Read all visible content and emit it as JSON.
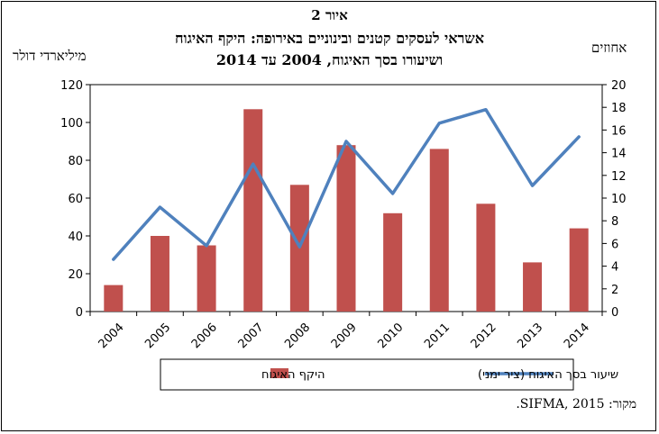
{
  "figure": {
    "number": "איור 2",
    "title_line1": "אשראי לעסקים קטנים ובינוניים באירופה: היקף האיגוח",
    "title_line2": "ושיעורו בסך האיגוח, 2004 עד 2014",
    "left_axis_unit": "מיליארדי דולר",
    "right_axis_unit": "אחוזים",
    "source": "מקור: SIFMA, 2015."
  },
  "chart_data": {
    "type": "bar+line",
    "categories": [
      "2004",
      "2005",
      "2006",
      "2007",
      "2008",
      "2009",
      "2010",
      "2011",
      "2012",
      "2013",
      "2014"
    ],
    "series": [
      {
        "name": "היקף האיגוח",
        "type": "bar",
        "axis": "left",
        "color": "#C0504D",
        "values": [
          14,
          40,
          35,
          107,
          67,
          88,
          52,
          86,
          57,
          26,
          44
        ]
      },
      {
        "name": "שיעור בסך האיגוח (ציר ימני)",
        "type": "line",
        "axis": "right",
        "color": "#4F81BD",
        "values": [
          4.6,
          9.2,
          5.8,
          13.0,
          5.7,
          15.0,
          10.4,
          16.6,
          17.8,
          11.1,
          15.4
        ]
      }
    ],
    "y_left": {
      "min": 0,
      "max": 120,
      "ticks": [
        "0",
        "20",
        "40",
        "60",
        "80",
        "100",
        "120"
      ]
    },
    "y_right": {
      "min": 0,
      "max": 20,
      "ticks": [
        "0",
        "2",
        "4",
        "6",
        "8",
        "10",
        "12",
        "14",
        "16",
        "18",
        "20"
      ]
    },
    "grid": false,
    "legend_position": "bottom"
  }
}
